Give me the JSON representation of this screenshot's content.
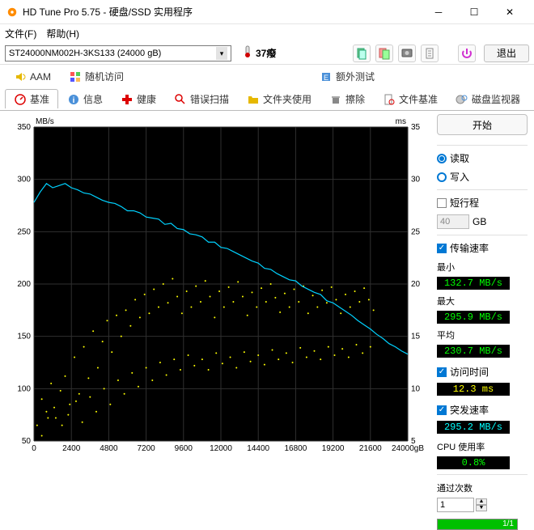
{
  "window": {
    "title": "HD Tune Pro 5.75 - 硬盘/SSD 实用程序"
  },
  "menu": {
    "file": "文件(F)",
    "help": "帮助(H)"
  },
  "toolbar": {
    "drive": "ST24000NM002H-3KS133 (24000 gB)",
    "temp_value": "37癈",
    "exit": "退出"
  },
  "tabs1": {
    "aam": "AAM",
    "random": "随机访问",
    "extra": "额外测试"
  },
  "tabs2": {
    "benchmark": "基准",
    "info": "信息",
    "health": "健康",
    "errorscan": "错误扫描",
    "folder": "文件夹使用",
    "erase": "擦除",
    "filebench": "文件基准",
    "monitor": "磁盘监视器"
  },
  "chart": {
    "y_left_label": "MB/s",
    "y_right_label": "ms",
    "y_left_ticks": [
      50,
      100,
      150,
      200,
      250,
      300,
      350
    ],
    "y_right_ticks": [
      5,
      10,
      15,
      20,
      25,
      30,
      35
    ],
    "x_ticks": [
      0,
      2400,
      4800,
      7200,
      9600,
      12000,
      14400,
      16800,
      19200,
      21600,
      "24000gB"
    ],
    "line_color": "#00d2ff",
    "dot_color": "#ffff00",
    "bg_color": "#000000",
    "grid_color": "#303030",
    "line_data": [
      [
        0,
        278
      ],
      [
        400,
        288
      ],
      [
        800,
        296
      ],
      [
        1200,
        292
      ],
      [
        1600,
        294
      ],
      [
        2000,
        296
      ],
      [
        2400,
        292
      ],
      [
        2800,
        290
      ],
      [
        3200,
        287
      ],
      [
        3600,
        286
      ],
      [
        4000,
        283
      ],
      [
        4400,
        280
      ],
      [
        4800,
        278
      ],
      [
        5200,
        277
      ],
      [
        5600,
        274
      ],
      [
        6000,
        270
      ],
      [
        6400,
        270
      ],
      [
        6800,
        268
      ],
      [
        7200,
        264
      ],
      [
        7600,
        263
      ],
      [
        8000,
        262
      ],
      [
        8400,
        257
      ],
      [
        8800,
        258
      ],
      [
        9200,
        253
      ],
      [
        9600,
        252
      ],
      [
        10000,
        248
      ],
      [
        10400,
        247
      ],
      [
        10800,
        245
      ],
      [
        11200,
        240
      ],
      [
        11600,
        240
      ],
      [
        12000,
        235
      ],
      [
        12400,
        234
      ],
      [
        12800,
        231
      ],
      [
        13200,
        228
      ],
      [
        13600,
        225
      ],
      [
        14000,
        222
      ],
      [
        14400,
        220
      ],
      [
        14800,
        215
      ],
      [
        15200,
        214
      ],
      [
        15600,
        210
      ],
      [
        16000,
        207
      ],
      [
        16400,
        204
      ],
      [
        16800,
        203
      ],
      [
        17200,
        198
      ],
      [
        17600,
        195
      ],
      [
        18000,
        192
      ],
      [
        18400,
        190
      ],
      [
        18800,
        184
      ],
      [
        19200,
        182
      ],
      [
        19600,
        178
      ],
      [
        20000,
        174
      ],
      [
        20400,
        170
      ],
      [
        20800,
        165
      ],
      [
        21200,
        161
      ],
      [
        21600,
        157
      ],
      [
        22000,
        152
      ],
      [
        22400,
        148
      ],
      [
        22800,
        143
      ],
      [
        23200,
        140
      ],
      [
        23600,
        136
      ],
      [
        24000,
        133
      ]
    ],
    "dots": [
      [
        200,
        65
      ],
      [
        500,
        90
      ],
      [
        800,
        78
      ],
      [
        1100,
        105
      ],
      [
        1400,
        72
      ],
      [
        1700,
        98
      ],
      [
        2000,
        112
      ],
      [
        2300,
        85
      ],
      [
        2600,
        130
      ],
      [
        2900,
        95
      ],
      [
        3200,
        140
      ],
      [
        3500,
        110
      ],
      [
        3800,
        155
      ],
      [
        4100,
        120
      ],
      [
        4400,
        145
      ],
      [
        4700,
        165
      ],
      [
        5000,
        135
      ],
      [
        5300,
        170
      ],
      [
        5600,
        150
      ],
      [
        5900,
        175
      ],
      [
        6200,
        160
      ],
      [
        6500,
        185
      ],
      [
        6800,
        168
      ],
      [
        7100,
        190
      ],
      [
        7400,
        172
      ],
      [
        7700,
        195
      ],
      [
        8000,
        178
      ],
      [
        8300,
        200
      ],
      [
        8600,
        182
      ],
      [
        8900,
        205
      ],
      [
        9200,
        188
      ],
      [
        9500,
        172
      ],
      [
        9800,
        193
      ],
      [
        10100,
        178
      ],
      [
        10400,
        198
      ],
      [
        10700,
        183
      ],
      [
        11000,
        203
      ],
      [
        11300,
        188
      ],
      [
        11600,
        168
      ],
      [
        11900,
        193
      ],
      [
        12200,
        178
      ],
      [
        12500,
        197
      ],
      [
        12800,
        183
      ],
      [
        13100,
        202
      ],
      [
        13400,
        188
      ],
      [
        13700,
        170
      ],
      [
        14000,
        192
      ],
      [
        14300,
        178
      ],
      [
        14600,
        196
      ],
      [
        14900,
        183
      ],
      [
        15200,
        200
      ],
      [
        15500,
        187
      ],
      [
        15800,
        173
      ],
      [
        16100,
        191
      ],
      [
        16400,
        178
      ],
      [
        16700,
        195
      ],
      [
        17000,
        183
      ],
      [
        17300,
        198
      ],
      [
        17600,
        172
      ],
      [
        17900,
        189
      ],
      [
        18200,
        178
      ],
      [
        18500,
        194
      ],
      [
        18800,
        182
      ],
      [
        19100,
        197
      ],
      [
        19400,
        185
      ],
      [
        19700,
        172
      ],
      [
        20000,
        190
      ],
      [
        20300,
        178
      ],
      [
        20600,
        193
      ],
      [
        20900,
        183
      ],
      [
        21200,
        196
      ],
      [
        21500,
        185
      ],
      [
        21800,
        175
      ],
      [
        500,
        55
      ],
      [
        900,
        72
      ],
      [
        1300,
        82
      ],
      [
        1800,
        65
      ],
      [
        2200,
        75
      ],
      [
        2700,
        88
      ],
      [
        3100,
        68
      ],
      [
        3600,
        92
      ],
      [
        4000,
        78
      ],
      [
        4500,
        100
      ],
      [
        4900,
        85
      ],
      [
        5400,
        108
      ],
      [
        5800,
        95
      ],
      [
        6300,
        115
      ],
      [
        6700,
        102
      ],
      [
        7200,
        120
      ],
      [
        7600,
        108
      ],
      [
        8100,
        125
      ],
      [
        8500,
        113
      ],
      [
        9000,
        128
      ],
      [
        9400,
        118
      ],
      [
        9900,
        132
      ],
      [
        10300,
        122
      ],
      [
        10800,
        128
      ],
      [
        11200,
        118
      ],
      [
        11700,
        134
      ],
      [
        12100,
        124
      ],
      [
        12600,
        130
      ],
      [
        13000,
        120
      ],
      [
        13500,
        135
      ],
      [
        13900,
        126
      ],
      [
        14400,
        132
      ],
      [
        14800,
        123
      ],
      [
        15300,
        137
      ],
      [
        15700,
        128
      ],
      [
        16200,
        134
      ],
      [
        16600,
        125
      ],
      [
        17100,
        139
      ],
      [
        17500,
        130
      ],
      [
        18000,
        136
      ],
      [
        18400,
        128
      ],
      [
        18900,
        140
      ],
      [
        19300,
        132
      ],
      [
        19800,
        138
      ],
      [
        20200,
        130
      ],
      [
        20700,
        142
      ],
      [
        21100,
        134
      ],
      [
        21600,
        140
      ]
    ]
  },
  "side": {
    "start": "开始",
    "read": "读取",
    "write": "写入",
    "short_stroke": "短行程",
    "short_val": "40",
    "gb": "GB",
    "transfer_rate": "传输速率",
    "min_label": "最小",
    "min_val": "132.7 MB/s",
    "max_label": "最大",
    "max_val": "295.9 MB/s",
    "avg_label": "平均",
    "avg_val": "230.7 MB/s",
    "access_time": "访问时间",
    "access_val": "12.3 ms",
    "burst_label": "突发速率",
    "burst_val": "295.2 MB/s",
    "cpu_label": "CPU 使用率",
    "cpu_val": "0.8%",
    "passes_label": "通过次数",
    "passes_val": "1",
    "progress": "1/1"
  }
}
